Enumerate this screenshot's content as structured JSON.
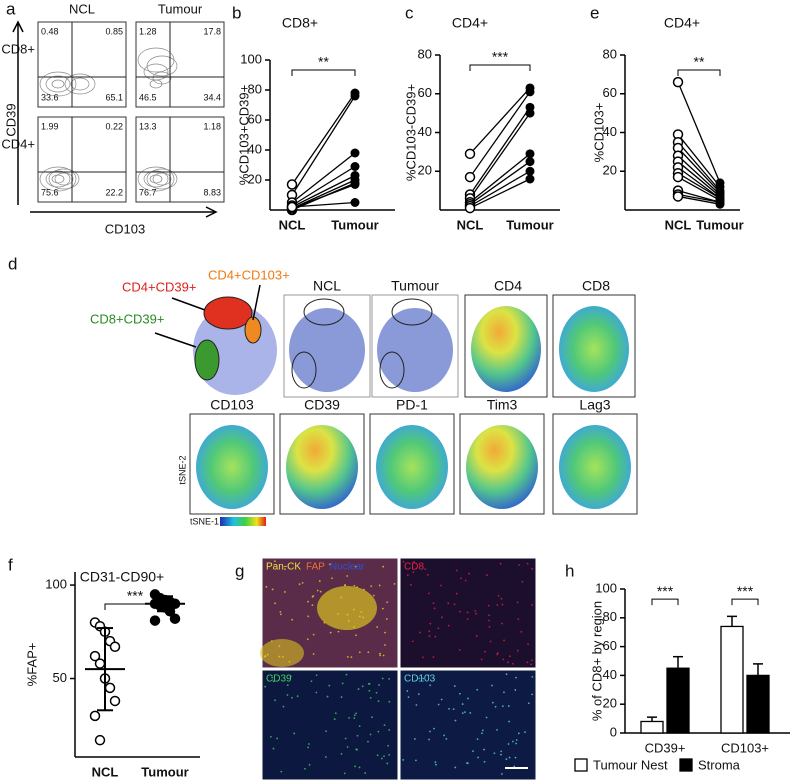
{
  "chart_data": [
    {
      "type": "paired",
      "panel": "b",
      "title": "CD8+",
      "y_label": "%CD103+CD39+",
      "categories": [
        "NCL",
        "Tumour"
      ],
      "pairs": [
        [
          17,
          78
        ],
        [
          10,
          76
        ],
        [
          5,
          38
        ],
        [
          3,
          29
        ],
        [
          2,
          23
        ],
        [
          1,
          20
        ],
        [
          0,
          18
        ],
        [
          1,
          17
        ],
        [
          2,
          5
        ]
      ],
      "ylim": [
        0,
        100
      ],
      "yticks": [
        20,
        40,
        60,
        80,
        100
      ],
      "significance": "**",
      "color": "#000000"
    },
    {
      "type": "paired",
      "panel": "c",
      "title": "CD4+",
      "y_label": "%CD103-CD39+",
      "categories": [
        "NCL",
        "Tumour"
      ],
      "pairs": [
        [
          29,
          63
        ],
        [
          17,
          61
        ],
        [
          8,
          53
        ],
        [
          6,
          50
        ],
        [
          4,
          29
        ],
        [
          3,
          25
        ],
        [
          2,
          20
        ],
        [
          1,
          16
        ]
      ],
      "ylim": [
        0,
        80
      ],
      "yticks": [
        20,
        40,
        60,
        80
      ],
      "significance": "***",
      "color": "#000000"
    },
    {
      "type": "paired",
      "panel": "e",
      "title": "CD4+",
      "y_label": "%CD103+",
      "categories": [
        "NCL",
        "Tumour"
      ],
      "pairs": [
        [
          66,
          14
        ],
        [
          39,
          12
        ],
        [
          35,
          10
        ],
        [
          32,
          9
        ],
        [
          28,
          8
        ],
        [
          25,
          7
        ],
        [
          22,
          6
        ],
        [
          19,
          6
        ],
        [
          17,
          5
        ],
        [
          10,
          4
        ],
        [
          8,
          4
        ],
        [
          7,
          3
        ]
      ],
      "ylim": [
        0,
        80
      ],
      "yticks": [
        20,
        40,
        60,
        80
      ],
      "significance": "**",
      "color": "#000000"
    },
    {
      "type": "dot",
      "panel": "f",
      "title": "CD31-CD90+",
      "y_label": "%FAP+",
      "categories": [
        "NCL",
        "Tumour"
      ],
      "values": [
        [
          80,
          78,
          75,
          70,
          67,
          62,
          58,
          50,
          45,
          38,
          30,
          17
        ],
        [
          95,
          93,
          92,
          91,
          90,
          90,
          89,
          88,
          86,
          82,
          81
        ]
      ],
      "mean": [
        55,
        90
      ],
      "sd": [
        22,
        4
      ],
      "ylim": [
        8,
        107
      ],
      "yticks": [
        50,
        100
      ],
      "significance": "***",
      "color": "#000000"
    },
    {
      "type": "bar",
      "panel": "h",
      "y_label": "% of CD8+ by region",
      "categories": [
        "CD39+",
        "CD103+"
      ],
      "series": [
        {
          "name": "Tumour Nest",
          "color": "#ffffff",
          "values": [
            8,
            74
          ],
          "errors": [
            3,
            7
          ]
        },
        {
          "name": "Stroma",
          "color": "#000000",
          "values": [
            45,
            40
          ],
          "errors": [
            8,
            8
          ]
        }
      ],
      "ylim": [
        0,
        100
      ],
      "yticks": [
        0,
        20,
        40,
        60,
        80,
        100
      ],
      "significance": [
        "***",
        "***"
      ]
    }
  ],
  "flow": {
    "panel": "a",
    "columns": [
      "NCL",
      "Tumour"
    ],
    "rows": [
      "CD8+",
      "CD4+"
    ],
    "y_axis": "CD39",
    "x_axis": "CD103",
    "plots": [
      [
        [
          0.48,
          0.85,
          33.6,
          65.1
        ],
        [
          1.28,
          17.8,
          46.5,
          34.4
        ]
      ],
      [
        [
          1.99,
          0.22,
          75.6,
          22.2
        ],
        [
          13.3,
          1.18,
          76.7,
          8.83
        ]
      ]
    ]
  },
  "tsne": {
    "panel": "d",
    "gates": [
      "CD4+CD39+",
      "CD4+CD103+",
      "CD8+CD39+"
    ],
    "row1": [
      "NCL",
      "Tumour",
      "CD4",
      "CD8"
    ],
    "row2": [
      "CD103",
      "CD39",
      "PD-1",
      "Tim3",
      "Lag3"
    ],
    "y_axis": "tSNE-2",
    "x_axis": "tSNE-1"
  },
  "imaging": {
    "panel": "g",
    "channels": [
      "Pan-CK",
      "FAP",
      "Nuclear"
    ],
    "labels": [
      "CD8",
      "CD39",
      "CD103"
    ]
  }
}
